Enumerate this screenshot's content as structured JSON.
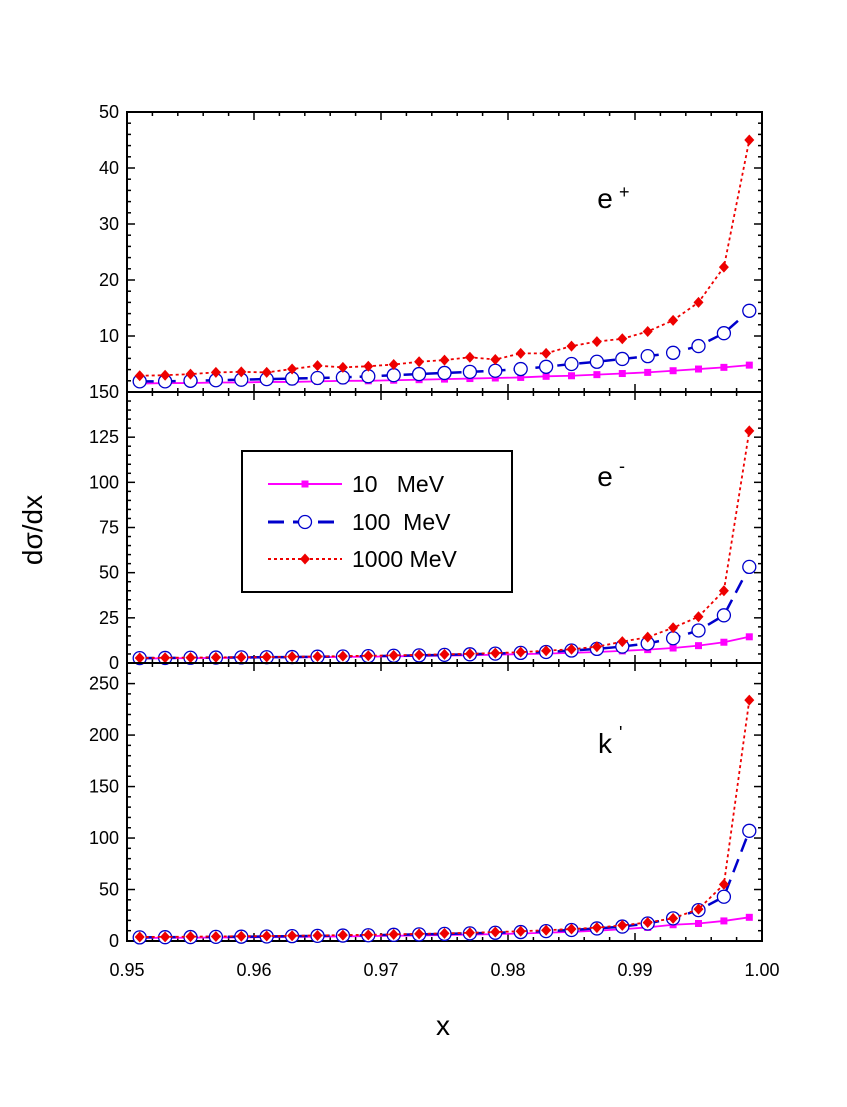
{
  "chart_data": {
    "type": "line",
    "xlabel": "x",
    "ylabel": "dσ/dx",
    "xlim": [
      0.95,
      1.0
    ],
    "xticks": [
      0.95,
      0.96,
      0.97,
      0.98,
      0.99,
      1.0
    ],
    "xtick_labels": [
      "0.95",
      "0.96",
      "0.97",
      "0.98",
      "0.99",
      "1.00"
    ],
    "x": [
      0.951,
      0.953,
      0.955,
      0.957,
      0.959,
      0.961,
      0.963,
      0.965,
      0.967,
      0.969,
      0.971,
      0.973,
      0.975,
      0.977,
      0.979,
      0.981,
      0.983,
      0.985,
      0.987,
      0.989,
      0.991,
      0.993,
      0.995,
      0.997,
      0.999
    ],
    "legend": {
      "position": "upper-left of middle panel",
      "entries": [
        "10   MeV",
        "100  MeV",
        "1000 MeV"
      ]
    },
    "series_styles": [
      {
        "name": "10   MeV",
        "color": "#ff00ff",
        "marker": "square",
        "dash": "solid"
      },
      {
        "name": "100  MeV",
        "color": "#0000cc",
        "marker": "open-circle",
        "dash": "long-dash"
      },
      {
        "name": "1000 MeV",
        "color": "#ee0000",
        "marker": "diamond",
        "dash": "dotted"
      }
    ],
    "panels": [
      {
        "label": "e",
        "label_sup": "+",
        "ylim": [
          0,
          50
        ],
        "yticks": [
          10,
          20,
          30,
          40,
          50
        ],
        "ytick_labels": [
          "10",
          "20",
          "30",
          "40",
          "50"
        ],
        "series": [
          {
            "name": "10   MeV",
            "values": [
              1.5,
              1.6,
              1.6,
              1.7,
              1.7,
              1.8,
              1.8,
              1.9,
              2.0,
              2.0,
              2.1,
              2.2,
              2.3,
              2.4,
              2.5,
              2.6,
              2.8,
              2.9,
              3.1,
              3.3,
              3.5,
              3.8,
              4.1,
              4.4,
              4.8
            ]
          },
          {
            "name": "100  MeV",
            "values": [
              1.9,
              1.9,
              2.0,
              2.1,
              2.2,
              2.3,
              2.4,
              2.5,
              2.6,
              2.8,
              3.0,
              3.2,
              3.4,
              3.6,
              3.8,
              4.1,
              4.5,
              5.0,
              5.4,
              5.9,
              6.4,
              7.0,
              8.2,
              10.5,
              14.5
            ]
          },
          {
            "name": "1000 MeV",
            "values": [
              2.9,
              3.0,
              3.2,
              3.5,
              3.6,
              3.5,
              4.1,
              4.7,
              4.4,
              4.6,
              4.9,
              5.4,
              5.7,
              6.2,
              5.8,
              6.9,
              6.9,
              8.2,
              9.0,
              9.5,
              10.8,
              12.8,
              16.0,
              22.3,
              45.0
            ]
          }
        ]
      },
      {
        "label": "e",
        "label_sup": "-",
        "ylim": [
          0,
          150
        ],
        "yticks": [
          0,
          25,
          50,
          75,
          100,
          125,
          150
        ],
        "ytick_labels": [
          "0",
          "25",
          "50",
          "75",
          "100",
          "125",
          "150"
        ],
        "series": [
          {
            "name": "10   MeV",
            "values": [
              2.5,
              2.6,
              2.7,
              2.8,
              2.9,
              3.0,
              3.1,
              3.2,
              3.4,
              3.5,
              3.7,
              3.9,
              4.1,
              4.3,
              4.6,
              4.9,
              5.2,
              5.6,
              6.1,
              6.7,
              7.4,
              8.3,
              9.6,
              11.5,
              14.5
            ]
          },
          {
            "name": "100  MeV",
            "values": [
              2.7,
              2.8,
              2.9,
              3.0,
              3.1,
              3.2,
              3.3,
              3.5,
              3.6,
              3.8,
              4.0,
              4.2,
              4.5,
              4.8,
              5.2,
              5.6,
              6.1,
              6.9,
              7.8,
              9.1,
              10.8,
              13.7,
              18.0,
              26.4,
              53.2
            ]
          },
          {
            "name": "1000 MeV",
            "values": [
              2.8,
              2.9,
              3.0,
              3.1,
              3.2,
              3.3,
              3.5,
              3.6,
              3.8,
              4.0,
              4.2,
              4.5,
              4.8,
              5.1,
              5.5,
              6.0,
              6.8,
              7.6,
              9.0,
              11.8,
              14.3,
              19.5,
              25.6,
              40.0,
              128.5
            ]
          }
        ]
      },
      {
        "label": "k",
        "label_sup": "'",
        "ylim": [
          0,
          270
        ],
        "yticks": [
          0,
          50,
          100,
          150,
          200,
          250
        ],
        "ytick_labels": [
          "0",
          "50",
          "100",
          "150",
          "200",
          "250"
        ],
        "series": [
          {
            "name": "10   MeV",
            "values": [
              3.0,
              3.1,
              3.3,
              3.4,
              3.6,
              3.8,
              4.0,
              4.2,
              4.5,
              4.8,
              5.1,
              5.4,
              5.8,
              6.2,
              6.7,
              7.3,
              8.0,
              8.9,
              10.0,
              11.4,
              13.2,
              15.8,
              17.0,
              19.5,
              23.0
            ]
          },
          {
            "name": "100  MeV",
            "values": [
              3.5,
              3.7,
              3.8,
              4.0,
              4.2,
              4.4,
              4.7,
              5.0,
              5.3,
              5.6,
              6.0,
              6.4,
              6.9,
              7.4,
              8.0,
              8.7,
              9.6,
              10.7,
              12.2,
              14.0,
              17.0,
              22.0,
              30.0,
              43.0,
              107.0
            ]
          },
          {
            "name": "1000 MeV",
            "values": [
              3.9,
              4.0,
              4.2,
              4.4,
              4.6,
              4.8,
              5.1,
              5.4,
              5.7,
              6.0,
              6.4,
              6.9,
              7.4,
              8.0,
              8.7,
              9.5,
              10.5,
              11.6,
              13.0,
              15.2,
              18.0,
              22.0,
              31.0,
              55.0,
              234.0
            ]
          }
        ]
      }
    ]
  }
}
